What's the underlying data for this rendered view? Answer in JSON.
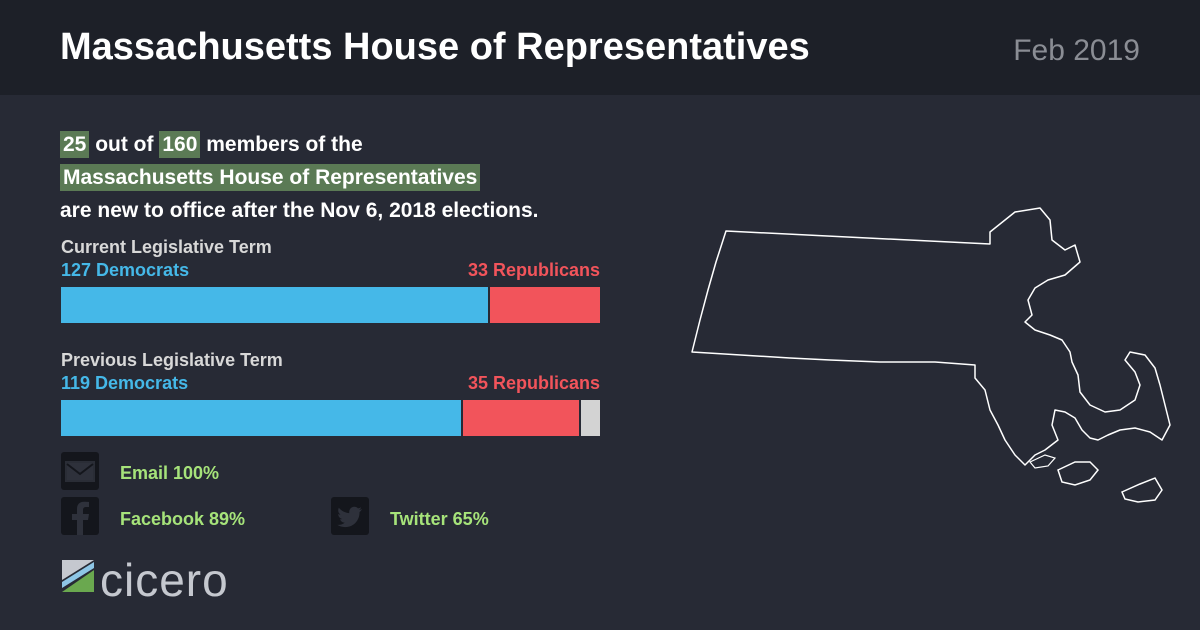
{
  "header": {
    "title": "Massachusetts House of Representatives",
    "date": "Feb 2019"
  },
  "summary": {
    "new_count": "25",
    "text_1": "out of",
    "total": "160",
    "text_2": "members of the",
    "body_name": "Massachusetts House of Representatives",
    "text_3": "are new to office after the Nov 6, 2018 elections."
  },
  "chart_data": {
    "type": "bar",
    "orientation": "horizontal-stacked",
    "total_seats": 160,
    "terms": [
      {
        "label": "Current Legislative Term",
        "dem_label": "127 Democrats",
        "rep_label": "33 Republicans",
        "democrats": 127,
        "republicans": 33,
        "other": 0
      },
      {
        "label": "Previous Legislative Term",
        "dem_label": "119 Democrats",
        "rep_label": "35 Republicans",
        "democrats": 119,
        "republicans": 35,
        "other": 6
      }
    ],
    "colors": {
      "democrats": "#45b8e8",
      "republicans": "#f2545b",
      "other": "#d3d3d3"
    }
  },
  "contacts": {
    "email": {
      "label": "Email 100%",
      "icon": "envelope-icon"
    },
    "facebook": {
      "label": "Facebook 89%",
      "icon": "facebook-icon"
    },
    "twitter": {
      "label": "Twitter 65%",
      "icon": "twitter-icon"
    }
  },
  "brand": {
    "name": "cicero",
    "accent": "#5b7a55"
  }
}
